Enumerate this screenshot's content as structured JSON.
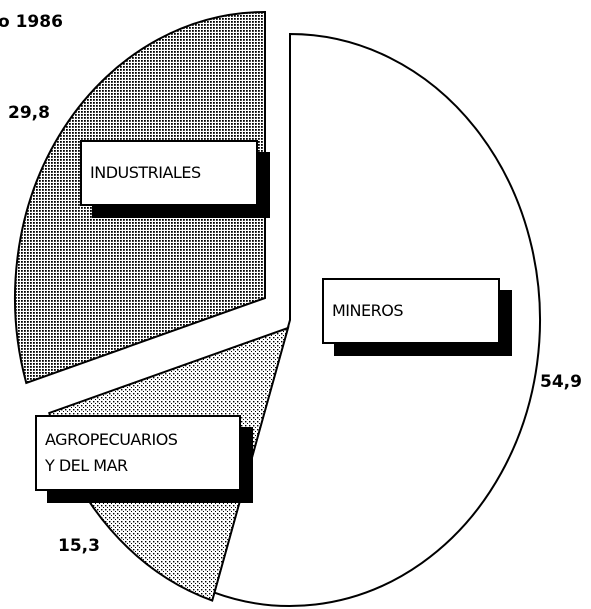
{
  "chart_data": {
    "type": "pie",
    "title": "o 1986",
    "categories": [
      "MINEROS",
      "AGROPECUARIOS\nY DEL MAR",
      "INDUSTRIALES"
    ],
    "values": [
      54.9,
      15.3,
      29.8
    ],
    "value_labels": [
      "54,9",
      "15,3",
      "29,8"
    ]
  }
}
